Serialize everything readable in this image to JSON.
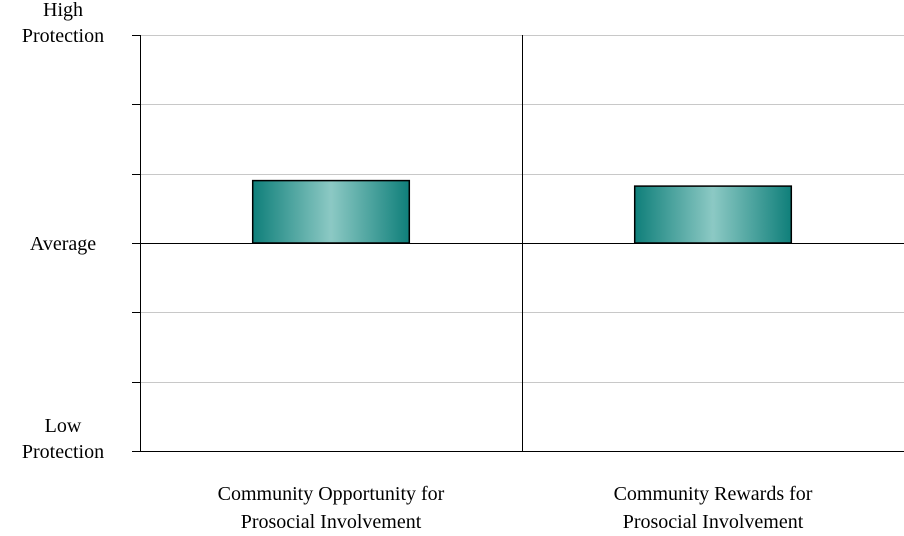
{
  "chart_data": {
    "type": "bar",
    "categories": [
      [
        "Community Opportunity for",
        "Prosocial Involvement"
      ],
      [
        "Community Rewards for",
        "Prosocial Involvement"
      ]
    ],
    "values": [
      0.45,
      0.41
    ],
    "ylim": [
      -1.5,
      1.5
    ],
    "y_tick_step": 0.5,
    "y_labels": [
      {
        "value": 1.5,
        "lines": [
          "High",
          "Protection"
        ]
      },
      {
        "value": 0,
        "lines": [
          "Average"
        ]
      },
      {
        "value": -1.5,
        "lines": [
          "Low",
          "Protection"
        ]
      }
    ],
    "grid": true,
    "legend": "none",
    "colors": {
      "bar_edge": "#0f7f7a",
      "bar_center": "#8cc9c4",
      "bar_outline": "#000000",
      "grid": "#c8c8c8",
      "axis": "#000000"
    }
  }
}
